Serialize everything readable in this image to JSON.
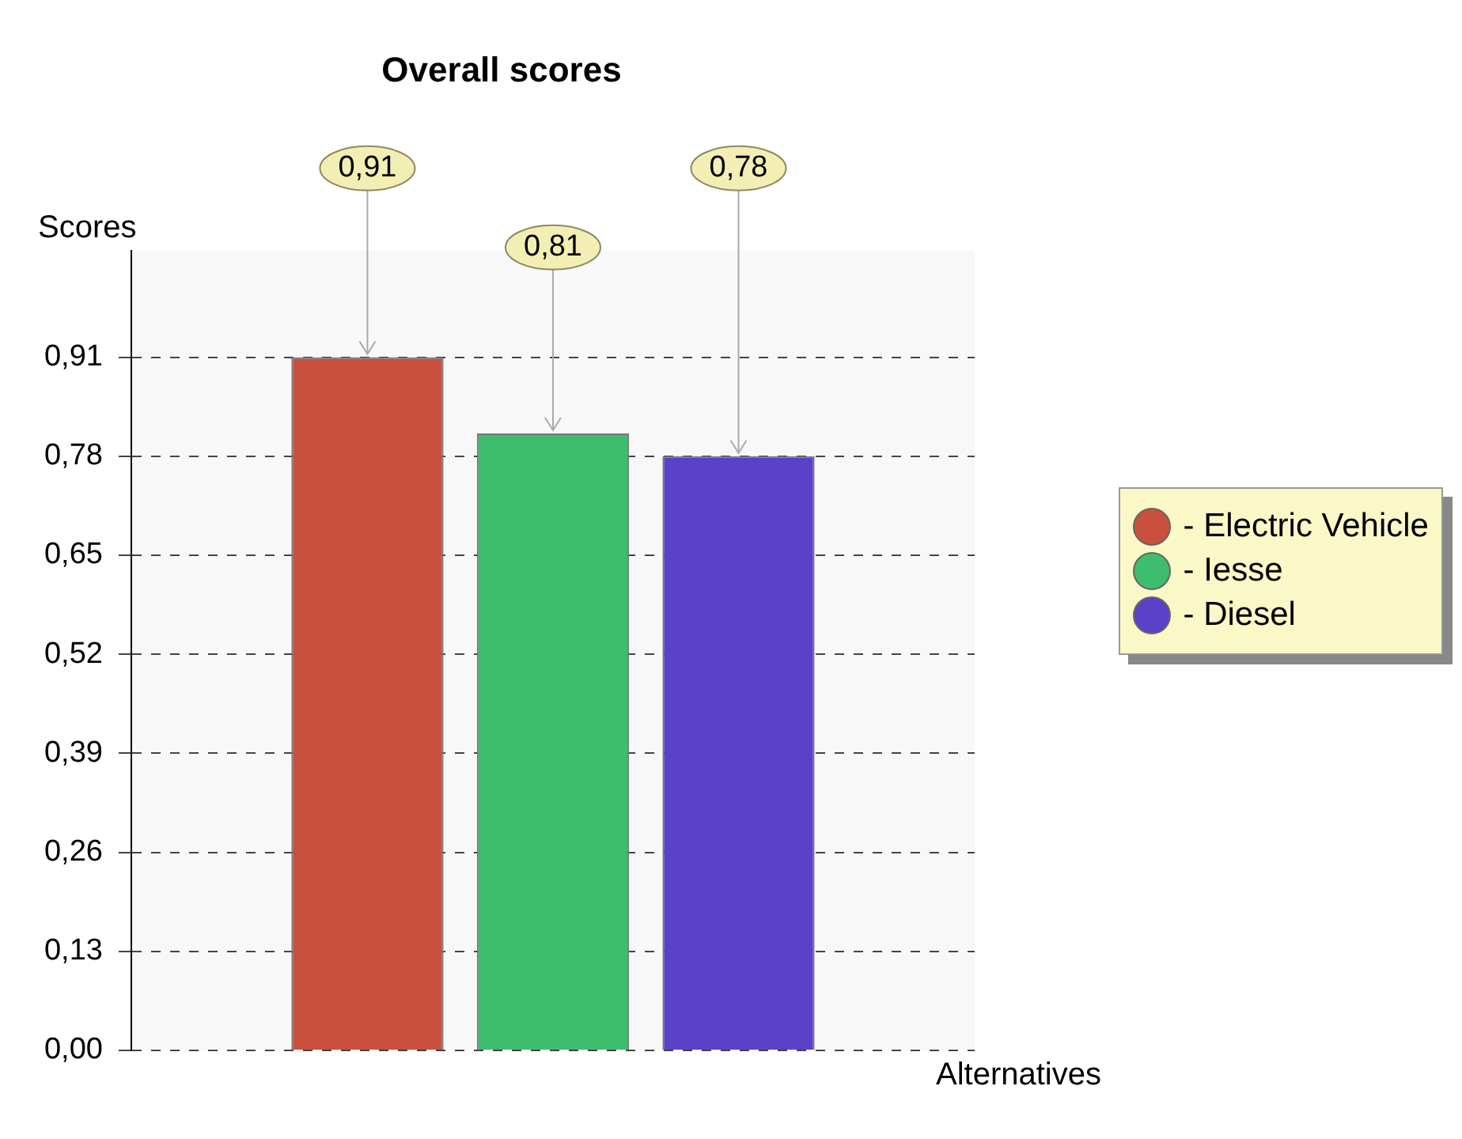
{
  "chart_data": {
    "type": "bar",
    "title": "Overall scores",
    "xlabel": "Alternatives",
    "ylabel": "Scores",
    "categories": [
      null
    ],
    "series": [
      {
        "name": "- Electric Vehicle",
        "color": "#c8503c",
        "values": [
          0.91
        ],
        "value_labels": [
          "0,91"
        ]
      },
      {
        "name": "- Iesse",
        "color": "#3cbe6e",
        "values": [
          0.81
        ],
        "value_labels": [
          "0,81"
        ]
      },
      {
        "name": "- Diesel",
        "color": "#5a41c8",
        "values": [
          0.78
        ],
        "value_labels": [
          "0,78"
        ]
      }
    ],
    "ylim": [
      0,
      1.05
    ],
    "yticks": [
      {
        "value": 0,
        "label": "0,00"
      },
      {
        "value": 0.13,
        "label": "0,13"
      },
      {
        "value": 0.26,
        "label": "0,26"
      },
      {
        "value": 0.39,
        "label": "0,39"
      },
      {
        "value": 0.52,
        "label": "0,52"
      },
      {
        "value": 0.65,
        "label": "0,65"
      },
      {
        "value": 0.78,
        "label": "0,78"
      },
      {
        "value": 0.91,
        "label": "0,91"
      }
    ],
    "grid": "y",
    "legend": "right"
  }
}
